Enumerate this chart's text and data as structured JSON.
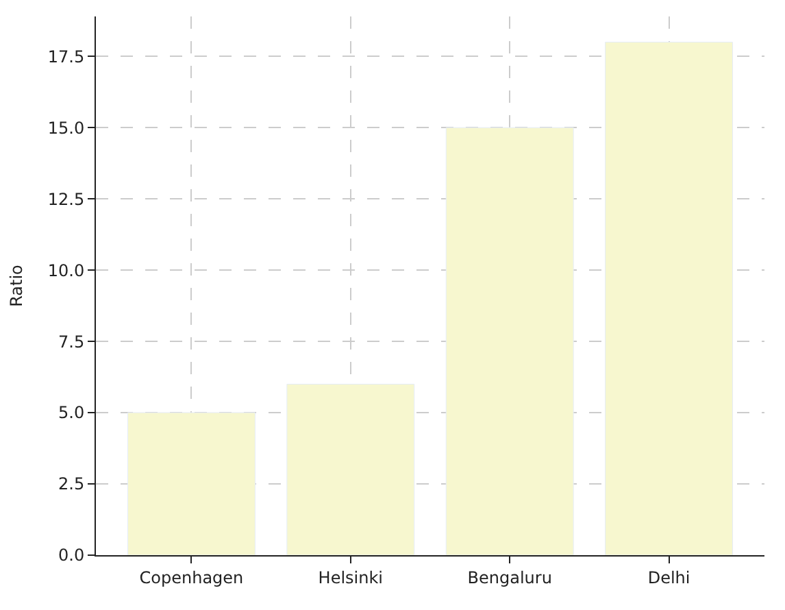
{
  "chart_data": {
    "type": "bar",
    "ylabel": "Ratio",
    "categories": [
      "Copenhagen",
      "Helsinki",
      "Bengaluru",
      "Delhi"
    ],
    "values": [
      5,
      6,
      15,
      18
    ],
    "color": "#f7f7cf",
    "ylim": [
      0,
      18.9
    ],
    "yticks": [
      {
        "value": 0,
        "label": "0.0"
      },
      {
        "value": 2.5,
        "label": "2.5"
      },
      {
        "value": 5,
        "label": "5.0"
      },
      {
        "value": 7.5,
        "label": "7.5"
      },
      {
        "value": 10,
        "label": "10.0"
      },
      {
        "value": 12.5,
        "label": "12.5"
      },
      {
        "value": 15,
        "label": "15.0"
      },
      {
        "value": 17.5,
        "label": "17.5"
      }
    ],
    "grid": true
  }
}
